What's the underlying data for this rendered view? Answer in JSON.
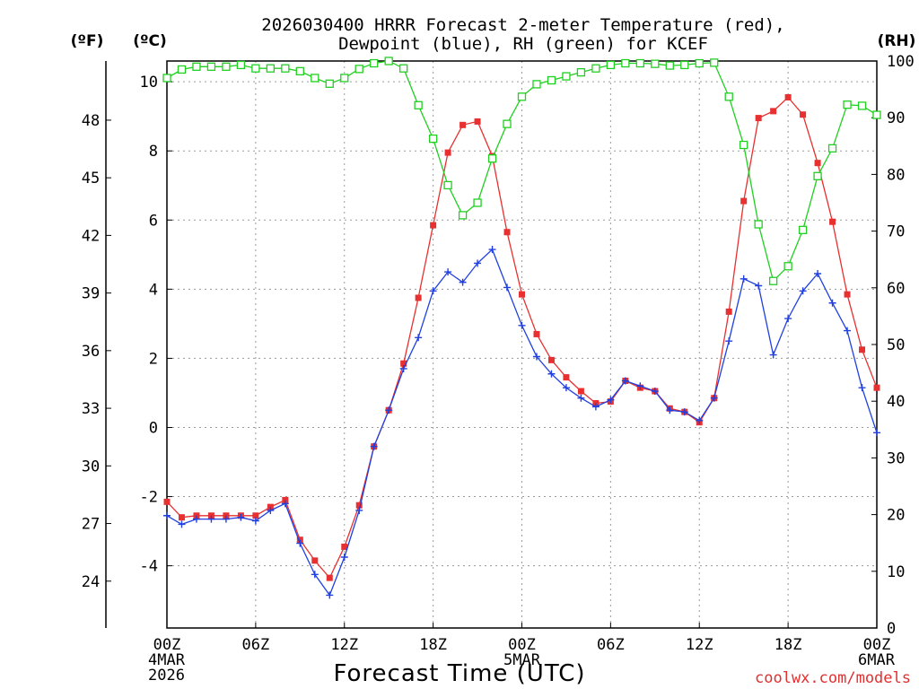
{
  "chart_data": {
    "type": "line",
    "title_line1": "2026030400 HRRR Forecast 2-meter Temperature (red),",
    "title_line2": "Dewpoint (blue), RH (green) for KCEF",
    "xlabel": "Forecast Time (UTC)",
    "credit": "coolwx.com/models",
    "units": {
      "fahrenheit": "(ºF)",
      "celsius": "(ºC)",
      "rh": "(RH)"
    },
    "x_hours": [
      0,
      1,
      2,
      3,
      4,
      5,
      6,
      7,
      8,
      9,
      10,
      11,
      12,
      13,
      14,
      15,
      16,
      17,
      18,
      19,
      20,
      21,
      22,
      23,
      24,
      25,
      26,
      27,
      28,
      29,
      30,
      31,
      32,
      33,
      34,
      35,
      36,
      37,
      38,
      39,
      40,
      41,
      42,
      43,
      44,
      45,
      46,
      47,
      48
    ],
    "xlim": [
      0,
      48
    ],
    "x_ticks": [
      {
        "h": 0,
        "lines": [
          "00Z",
          "4MAR",
          "2026"
        ]
      },
      {
        "h": 6,
        "lines": [
          "06Z"
        ]
      },
      {
        "h": 12,
        "lines": [
          "12Z"
        ]
      },
      {
        "h": 18,
        "lines": [
          "18Z"
        ]
      },
      {
        "h": 24,
        "lines": [
          "00Z",
          "5MAR"
        ]
      },
      {
        "h": 30,
        "lines": [
          "06Z"
        ]
      },
      {
        "h": 36,
        "lines": [
          "12Z"
        ]
      },
      {
        "h": 42,
        "lines": [
          "18Z"
        ]
      },
      {
        "h": 48,
        "lines": [
          "00Z",
          "6MAR"
        ]
      }
    ],
    "celsius_axis": {
      "ylim": [
        -5.8,
        10.6
      ],
      "ticks": [
        -4,
        -2,
        0,
        2,
        4,
        6,
        8,
        10
      ],
      "tick_labels": [
        "-4",
        "-2",
        "0",
        "2",
        "4",
        "6",
        "8",
        "10"
      ]
    },
    "fahrenheit_ticks": [
      24,
      27,
      30,
      33,
      36,
      39,
      42,
      45,
      48
    ],
    "rh_axis": {
      "ylim": [
        0,
        100
      ],
      "ticks": [
        0,
        10,
        20,
        30,
        40,
        50,
        60,
        70,
        80,
        90,
        100
      ]
    },
    "series": [
      {
        "name": "Temperature",
        "color": "#e83030",
        "marker": "filled-square",
        "axis": "celsius",
        "values": [
          -2.15,
          -2.6,
          -2.55,
          -2.55,
          -2.55,
          -2.55,
          -2.55,
          -2.3,
          -2.1,
          -3.25,
          -3.85,
          -4.35,
          -3.45,
          -2.25,
          -0.55,
          0.5,
          1.85,
          3.75,
          5.85,
          7.95,
          8.75,
          8.85,
          7.85,
          5.65,
          3.85,
          2.7,
          1.95,
          1.45,
          1.05,
          0.7,
          0.75,
          1.35,
          1.15,
          1.05,
          0.55,
          0.45,
          0.15,
          0.85,
          3.35,
          6.55,
          8.95,
          9.15,
          9.55,
          9.05,
          7.65,
          5.95,
          3.85,
          2.25,
          1.15
        ]
      },
      {
        "name": "Dewpoint",
        "color": "#2040e0",
        "marker": "plus",
        "axis": "celsius",
        "values": [
          -2.55,
          -2.8,
          -2.65,
          -2.65,
          -2.65,
          -2.6,
          -2.7,
          -2.4,
          -2.2,
          -3.35,
          -4.25,
          -4.85,
          -3.75,
          -2.4,
          -0.55,
          0.5,
          1.7,
          2.6,
          3.95,
          4.5,
          4.2,
          4.75,
          5.15,
          4.05,
          2.95,
          2.05,
          1.55,
          1.15,
          0.85,
          0.6,
          0.8,
          1.35,
          1.2,
          1.05,
          0.5,
          0.45,
          0.2,
          0.85,
          2.5,
          4.3,
          4.1,
          2.1,
          3.15,
          3.95,
          4.45,
          3.6,
          2.8,
          1.15,
          -0.15
        ]
      },
      {
        "name": "RH",
        "color": "#20d020",
        "marker": "open-square",
        "axis": "rh",
        "values": [
          97,
          98.5,
          99,
          99,
          99,
          99.3,
          98.7,
          98.7,
          98.7,
          98.2,
          97,
          96,
          97,
          98.6,
          99.6,
          100,
          98.7,
          92.2,
          86.3,
          78.1,
          72.8,
          75,
          82.8,
          88.9,
          93.7,
          95.9,
          96.6,
          97.3,
          98,
          98.7,
          99.3,
          99.6,
          99.6,
          99.5,
          99.2,
          99.3,
          99.6,
          99.7,
          93.7,
          85.2,
          71.2,
          61.2,
          63.8,
          70.2,
          79.7,
          84.6,
          92.3,
          92.1,
          90.5
        ]
      }
    ]
  }
}
